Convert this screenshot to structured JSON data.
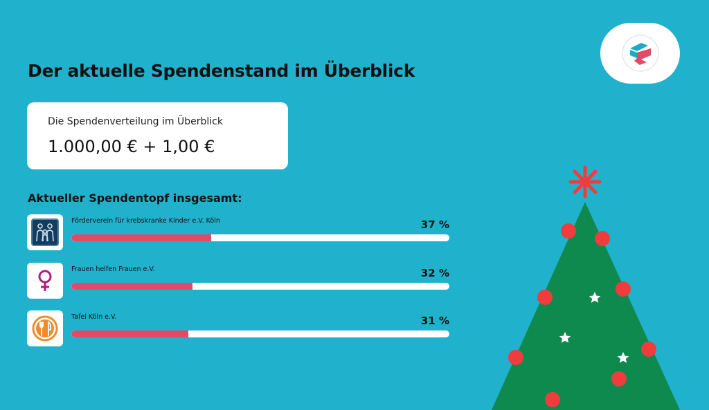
{
  "page": {
    "title": "Der aktuelle Spendenstand im Überblick"
  },
  "summary": {
    "subtitle": "Die Spendenverteilung im Überblick",
    "amount": "1.000,00 € + 1,00 €"
  },
  "pot": {
    "heading": "Aktueller Spendentopf insgesamt:",
    "organizations": [
      {
        "name": "Förderverein für krebskranke Kinder e.V. Köln",
        "percent_label": "37 %",
        "share": 0.37,
        "icon": "children-silhouette-icon"
      },
      {
        "name": "Frauen helfen Frauen e.V.",
        "percent_label": "32 %",
        "share": 0.32,
        "icon": "female-symbol-icon"
      },
      {
        "name": "Tafel Köln e.V.",
        "percent_label": "31 %",
        "share": 0.31,
        "icon": "fork-knife-icon"
      }
    ]
  },
  "colors": {
    "background": "#20b2cc",
    "bar_fill": "#e34a65",
    "tree": "#0f8a4e",
    "ornament": "#f03c3c"
  }
}
